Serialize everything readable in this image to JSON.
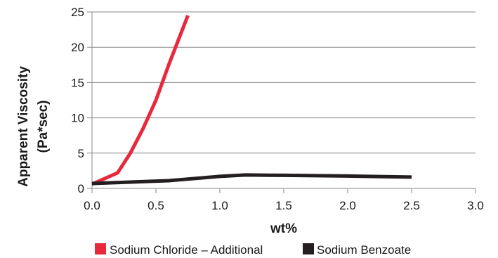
{
  "chart_data": {
    "type": "line",
    "title": "",
    "xlabel": "wt%",
    "ylabel_lines": [
      "Apparent Viscosity",
      "(Pa*sec)"
    ],
    "xlim": [
      0,
      3
    ],
    "ylim": [
      0,
      25
    ],
    "x_ticks": [
      0,
      0.5,
      1,
      1.5,
      2,
      2.5,
      3
    ],
    "x_tick_labels": [
      "0.0",
      "0.5",
      "1.0",
      "1.5",
      "2.0",
      "2.5",
      "3.0"
    ],
    "y_ticks": [
      0,
      5,
      10,
      15,
      20,
      25
    ],
    "y_tick_labels": [
      "0",
      "5",
      "10",
      "15",
      "20",
      "25"
    ],
    "grid": "horizontal",
    "legend_position": "bottom",
    "series": [
      {
        "name": "Sodium Chloride – Additional",
        "color": "#e8293c",
        "points": [
          [
            0,
            0.6
          ],
          [
            0.2,
            2.2
          ],
          [
            0.3,
            5.0
          ],
          [
            0.4,
            8.5
          ],
          [
            0.5,
            12.5
          ],
          [
            0.6,
            17.5
          ],
          [
            0.75,
            24.5
          ]
        ]
      },
      {
        "name": "Sodium Benzoate",
        "color": "#231f20",
        "points": [
          [
            0,
            0.7
          ],
          [
            0.3,
            0.9
          ],
          [
            0.6,
            1.1
          ],
          [
            1.0,
            1.7
          ],
          [
            1.2,
            1.9
          ],
          [
            1.5,
            1.85
          ],
          [
            2.0,
            1.75
          ],
          [
            2.5,
            1.6
          ]
        ]
      }
    ]
  }
}
